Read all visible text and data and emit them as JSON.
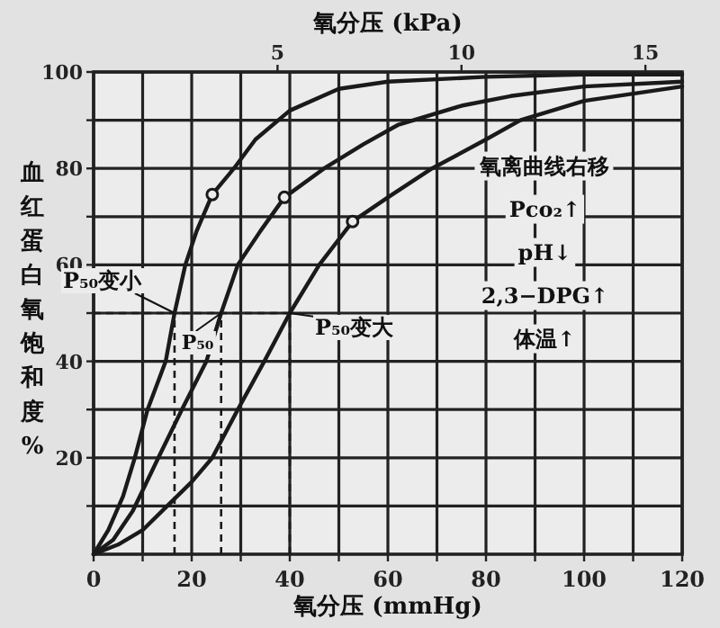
{
  "chart_data": {
    "type": "line",
    "xlabel": "氧分压 (mmHg)",
    "x2label": "氧分压 (kPa)",
    "ylabel": "血红蛋白氧饱和度%",
    "xlim": [
      0,
      120
    ],
    "ylim": [
      0,
      100
    ],
    "x2lim": [
      0,
      16
    ],
    "xticks": [
      0,
      {
        "value": 10,
        "label": null
      },
      20,
      {
        "value": 30,
        "label": null
      },
      40,
      {
        "value": 50,
        "label": null
      },
      60,
      {
        "value": 70,
        "label": null
      },
      80,
      {
        "value": 90,
        "label": null
      },
      100,
      {
        "value": 110,
        "label": null
      },
      120
    ],
    "yticks": [
      {
        "value": 10,
        "label": null
      },
      20,
      {
        "value": 30,
        "label": null
      },
      40,
      {
        "value": 50,
        "label": null
      },
      60,
      {
        "value": 70,
        "label": null
      },
      80,
      {
        "value": 90,
        "label": null
      },
      100
    ],
    "x2ticks": [
      5,
      10,
      15
    ],
    "grid": true,
    "line_style": "solid",
    "series": [
      {
        "color": "#1a1a1a",
        "x": [
          0,
          3,
          6,
          8.4,
          11,
          14.7,
          16.5,
          18.7,
          21,
          24.2,
          28.6,
          33,
          40,
          50,
          60,
          80,
          100,
          120
        ],
        "values": [
          0,
          5,
          12,
          20,
          30,
          40,
          50,
          60,
          67,
          74.6,
          80,
          86,
          92,
          96.5,
          98,
          99,
          99.5,
          99.5
        ]
      },
      {
        "color": "#1a1a1a",
        "x": [
          0,
          4,
          8,
          13.2,
          18,
          23,
          26,
          29.4,
          34,
          38.9,
          47,
          55,
          62,
          75,
          85,
          100,
          120
        ],
        "values": [
          0,
          3,
          9,
          20,
          30,
          40,
          50,
          60,
          67,
          74,
          80,
          85,
          89,
          93,
          95,
          97,
          98
        ]
      },
      {
        "color": "#1a1a1a",
        "x": [
          0,
          5,
          10,
          15,
          20,
          24.2,
          29.4,
          34.8,
          40,
          46,
          52.8,
          60,
          69,
          80,
          87,
          100,
          120
        ],
        "values": [
          0,
          2,
          5,
          10,
          15,
          20,
          30,
          40,
          50,
          60,
          69,
          74,
          80,
          86,
          90,
          94,
          97
        ]
      },
      {
        "type": "scatter",
        "marker": "circle",
        "color": "#1a1a1a",
        "x": [
          24.2,
          38.9,
          52.8
        ],
        "values": [
          74.6,
          74,
          69
        ]
      }
    ],
    "ref_lines": [
      {
        "axis": "y",
        "value": 50,
        "line_style": "dashed",
        "color": "#1a1a1a"
      },
      {
        "axis": "x",
        "value": 16.5,
        "line_style": "dashed",
        "color": "#1a1a1a"
      },
      {
        "axis": "x",
        "value": 26,
        "line_style": "dashed",
        "color": "#1a1a1a"
      },
      {
        "axis": "x",
        "value": 40,
        "line_style": "dashed",
        "color": "#1a1a1a"
      }
    ],
    "annotations": [
      {
        "text": "P₅₀变小",
        "x": 16.5,
        "y": 50
      },
      {
        "text": "P₅₀",
        "x": 26,
        "y": 50
      },
      {
        "text": "P₅₀变大",
        "x": 40,
        "y": 50
      },
      "氧离曲线右移",
      "Pco₂↑",
      "pH↓",
      "2,3−DPG↑",
      "体温↑"
    ]
  }
}
